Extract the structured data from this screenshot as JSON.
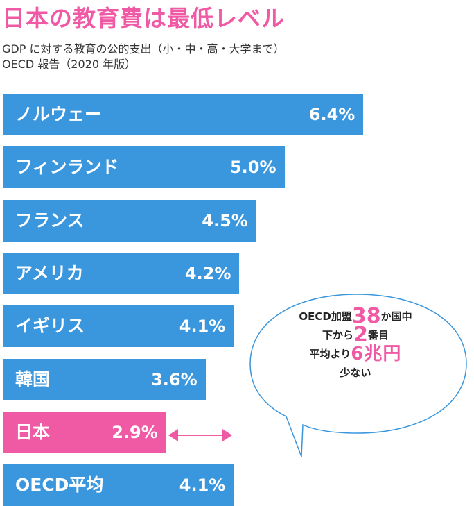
{
  "title": "日本の教育費は最低レベル",
  "subtitle_line1": "GDP に対する教育の公的支出（小・中・高・大学まで）",
  "subtitle_line2": "OECD 報告（2020 年版）",
  "colors": {
    "bar": "#3a96dd",
    "highlight": "#f05aa5",
    "title": "#f05aa5"
  },
  "chart_data": {
    "type": "bar",
    "orientation": "horizontal",
    "categories": [
      "ノルウェー",
      "フィンランド",
      "フランス",
      "アメリカ",
      "イギリス",
      "韓国",
      "日本",
      "OECD平均"
    ],
    "values": [
      6.4,
      5.0,
      4.5,
      4.2,
      4.1,
      3.6,
      2.9,
      4.1
    ],
    "value_labels": [
      "6.4%",
      "5.0%",
      "4.5%",
      "4.2%",
      "4.1%",
      "3.6%",
      "2.9%",
      "4.1%"
    ],
    "highlight_category": "日本",
    "unit": "%"
  },
  "callout": {
    "line1_prefix": "OECD加盟",
    "line1_number": "38",
    "line1_suffix": "か国中",
    "line2_prefix": "下から",
    "line2_number": "2",
    "line2_suffix": "番目",
    "line3_prefix": "平均より",
    "line3_highlight": "6兆円",
    "line4": "少ない"
  }
}
